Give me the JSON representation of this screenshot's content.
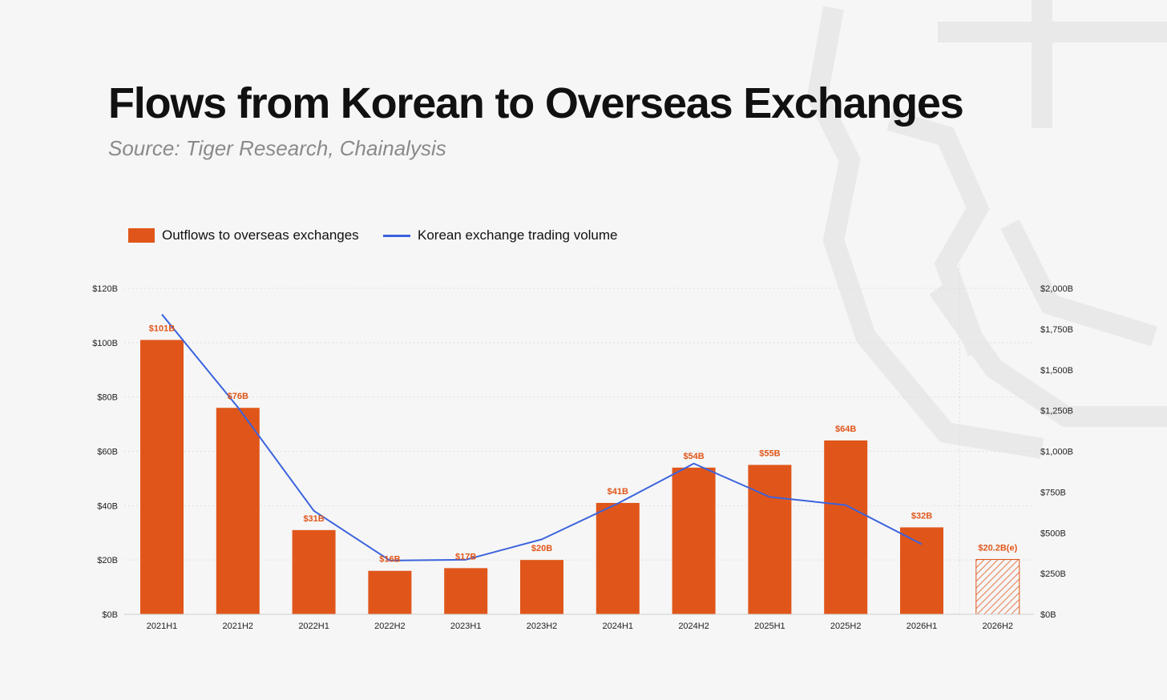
{
  "title": "Flows from Korean to Overseas Exchanges",
  "subtitle": "Source: Tiger Research, Chainalysis",
  "colors": {
    "bar": "#e0561a",
    "line": "#3b63dd",
    "grid": "#dedede",
    "background": "#f6f6f6"
  },
  "legend": {
    "bars_label": "Outflows to overseas exchanges",
    "line_label": "Korean exchange trading volume",
    "placement": "top-left"
  },
  "chart_data": {
    "type": "bar",
    "title": "Flows from Korean to Overseas Exchanges",
    "subtitle": "Source: Tiger Research, Chainalysis",
    "categories": [
      "2021H1",
      "2021H2",
      "2022H1",
      "2022H2",
      "2023H1",
      "2023H2",
      "2024H1",
      "2024H2",
      "2025H1",
      "2025H2",
      "2026H1",
      "2026H2"
    ],
    "series": [
      {
        "name": "Outflows to overseas exchanges",
        "type": "bar",
        "axis": "left",
        "values": [
          101,
          76,
          31,
          16,
          17,
          20,
          41,
          54,
          55,
          64,
          32,
          20.2
        ],
        "labels": [
          "$101B",
          "$76B",
          "$31B",
          "$16B",
          "$17B",
          "$20B",
          "$41B",
          "$54B",
          "$55B",
          "$64B",
          "$32B",
          "$20.2B(e)"
        ],
        "estimated": [
          false,
          false,
          false,
          false,
          false,
          false,
          false,
          false,
          false,
          false,
          false,
          true
        ]
      },
      {
        "name": "Korean exchange trading volume",
        "type": "line",
        "axis": "right",
        "values": [
          1840,
          1270,
          635,
          330,
          335,
          460,
          680,
          925,
          720,
          670,
          430,
          null
        ]
      }
    ],
    "ylim_left": [
      0,
      120
    ],
    "ylim_right": [
      0,
      2000
    ],
    "yticks_left": [
      "$0B",
      "$20B",
      "$40B",
      "$60B",
      "$80B",
      "$100B",
      "$120B"
    ],
    "yticks_right": [
      "$0B",
      "$250B",
      "$500B",
      "$750B",
      "$1,000B",
      "$1,250B",
      "$1,500B",
      "$1,750B",
      "$2,000B"
    ],
    "grid": true,
    "legend_position": "top-left"
  }
}
